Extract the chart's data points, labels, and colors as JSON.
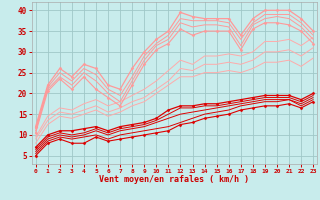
{
  "xlabel": "Vent moyen/en rafales ( km/h )",
  "background_color": "#c8ecec",
  "grid_color": "#a0c8c8",
  "x": [
    0,
    1,
    2,
    3,
    4,
    5,
    6,
    7,
    8,
    9,
    10,
    11,
    12,
    13,
    14,
    15,
    16,
    17,
    18,
    19,
    20,
    21,
    22,
    23
  ],
  "ylim": [
    3,
    42
  ],
  "xlim": [
    -0.3,
    23.3
  ],
  "yticks": [
    5,
    10,
    15,
    20,
    25,
    30,
    35,
    40
  ],
  "lines": [
    {
      "y": [
        5,
        8,
        9,
        8,
        8,
        9.5,
        8.5,
        9,
        9.5,
        10,
        10.5,
        11,
        12.5,
        13,
        14,
        14.5,
        15,
        16,
        16.5,
        17,
        17,
        17.5,
        16.5,
        18
      ],
      "color": "#dd0000",
      "lw": 0.8,
      "marker": "D",
      "ms": 1.5,
      "zorder": 5
    },
    {
      "y": [
        5.5,
        8.5,
        9.5,
        9,
        9.5,
        10,
        9,
        10,
        10.5,
        11,
        11.5,
        12,
        13,
        14,
        15,
        15.5,
        16,
        17,
        17.5,
        18,
        18,
        18.5,
        17,
        18.5
      ],
      "color": "#dd0000",
      "lw": 0.7,
      "marker": null,
      "ms": 0,
      "zorder": 4
    },
    {
      "y": [
        6,
        9,
        10,
        9.5,
        10,
        11,
        10,
        11,
        11.5,
        12,
        13,
        14,
        15,
        15.5,
        16,
        16.5,
        17,
        17.5,
        18,
        18.5,
        18.5,
        18.5,
        17.5,
        19
      ],
      "color": "#dd0000",
      "lw": 0.7,
      "marker": null,
      "ms": 0,
      "zorder": 4
    },
    {
      "y": [
        6.5,
        9.5,
        10.5,
        10,
        10.5,
        11.5,
        10.5,
        11.5,
        12,
        12.5,
        13.5,
        15,
        16.5,
        16.5,
        17,
        17,
        17.5,
        18,
        18.5,
        19,
        19,
        19,
        18,
        19.5
      ],
      "color": "#dd0000",
      "lw": 0.7,
      "marker": null,
      "ms": 0,
      "zorder": 3
    },
    {
      "y": [
        7,
        10,
        11,
        11,
        11.5,
        12,
        11,
        12,
        12.5,
        13,
        14,
        16,
        17,
        17,
        17.5,
        17.5,
        18,
        18.5,
        19,
        19.5,
        19.5,
        19.5,
        18.5,
        20
      ],
      "color": "#dd0000",
      "lw": 0.9,
      "marker": "D",
      "ms": 1.5,
      "zorder": 5
    },
    {
      "y": [
        10.5,
        20.5,
        23.5,
        21,
        24,
        21,
        19,
        17,
        22,
        27,
        30.5,
        32,
        35.5,
        34,
        35,
        35,
        35,
        30.5,
        35.5,
        37,
        37,
        36.5,
        35,
        32
      ],
      "color": "#ff9999",
      "lw": 0.8,
      "marker": "D",
      "ms": 1.5,
      "zorder": 5
    },
    {
      "y": [
        11,
        21,
        24,
        22,
        25,
        23,
        20,
        18,
        23,
        28,
        31.5,
        33,
        37,
        36,
        36.5,
        36.5,
        36,
        31.5,
        36.5,
        38,
        38.5,
        38,
        36,
        33
      ],
      "color": "#ff9999",
      "lw": 0.7,
      "marker": null,
      "ms": 0,
      "zorder": 4
    },
    {
      "y": [
        11.5,
        21.5,
        25,
        23,
        26,
        24.5,
        21,
        19.5,
        24,
        29,
        32,
        34,
        38,
        37.5,
        37.5,
        37.5,
        37,
        33,
        37,
        39,
        39,
        39,
        37,
        34
      ],
      "color": "#ff9999",
      "lw": 0.7,
      "marker": null,
      "ms": 0,
      "zorder": 3
    },
    {
      "y": [
        12,
        22,
        26,
        24,
        27,
        26,
        22,
        21,
        26,
        30,
        33,
        35,
        39.5,
        38.5,
        38,
        38,
        38,
        34,
        38,
        40,
        40,
        40,
        38,
        35
      ],
      "color": "#ff9999",
      "lw": 0.9,
      "marker": "D",
      "ms": 1.5,
      "zorder": 5
    },
    {
      "y": [
        8,
        12.5,
        14.5,
        14,
        15,
        16,
        14.5,
        15.5,
        17,
        18,
        20,
        22,
        24,
        24,
        25,
        25,
        25.5,
        25,
        26,
        27.5,
        27.5,
        28,
        26.5,
        28.5
      ],
      "color": "#ffaaaa",
      "lw": 0.7,
      "marker": null,
      "ms": 0,
      "zorder": 3
    },
    {
      "y": [
        9,
        13.5,
        15.5,
        15,
        16,
        17,
        15.5,
        16.5,
        18,
        19,
        21,
        23,
        26,
        25.5,
        27,
        27,
        27.5,
        27,
        28,
        30,
        30,
        30.5,
        29,
        31
      ],
      "color": "#ffaaaa",
      "lw": 0.7,
      "marker": null,
      "ms": 0,
      "zorder": 3
    },
    {
      "y": [
        9.5,
        14.5,
        16.5,
        16,
        17.5,
        18.5,
        17,
        18,
        19.5,
        21,
        23,
        25.5,
        28,
        27,
        29,
        29,
        29.5,
        29,
        30,
        32.5,
        32.5,
        33,
        31.5,
        33.5
      ],
      "color": "#ffaaaa",
      "lw": 0.7,
      "marker": null,
      "ms": 0,
      "zorder": 3
    }
  ]
}
